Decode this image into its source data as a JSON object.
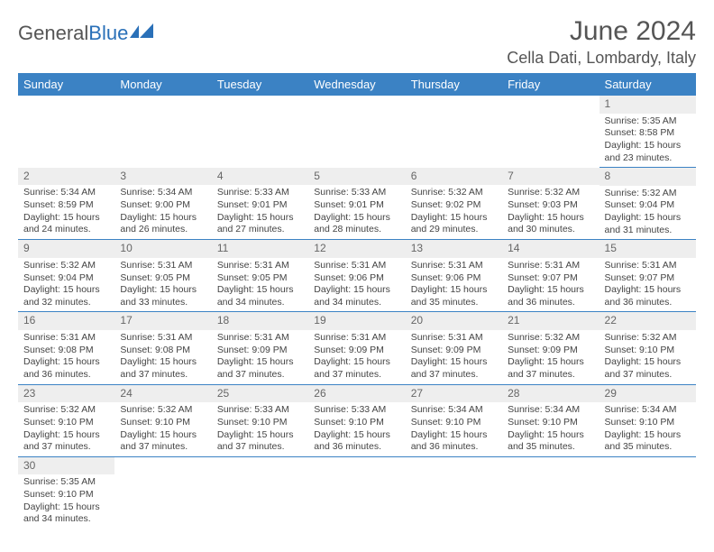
{
  "logo": {
    "text1": "General",
    "text2": "Blue"
  },
  "title": "June 2024",
  "location": "Cella Dati, Lombardy, Italy",
  "colors": {
    "header_bg": "#3b82c4",
    "header_text": "#ffffff",
    "daynum_bg": "#eeeeee",
    "border": "#3b82c4",
    "logo_gray": "#555555",
    "logo_blue": "#2a70b8"
  },
  "day_headers": [
    "Sunday",
    "Monday",
    "Tuesday",
    "Wednesday",
    "Thursday",
    "Friday",
    "Saturday"
  ],
  "weeks": [
    [
      null,
      null,
      null,
      null,
      null,
      null,
      {
        "n": "1",
        "sr": "Sunrise: 5:35 AM",
        "ss": "Sunset: 8:58 PM",
        "dl": "Daylight: 15 hours and 23 minutes."
      }
    ],
    [
      {
        "n": "2",
        "sr": "Sunrise: 5:34 AM",
        "ss": "Sunset: 8:59 PM",
        "dl": "Daylight: 15 hours and 24 minutes."
      },
      {
        "n": "3",
        "sr": "Sunrise: 5:34 AM",
        "ss": "Sunset: 9:00 PM",
        "dl": "Daylight: 15 hours and 26 minutes."
      },
      {
        "n": "4",
        "sr": "Sunrise: 5:33 AM",
        "ss": "Sunset: 9:01 PM",
        "dl": "Daylight: 15 hours and 27 minutes."
      },
      {
        "n": "5",
        "sr": "Sunrise: 5:33 AM",
        "ss": "Sunset: 9:01 PM",
        "dl": "Daylight: 15 hours and 28 minutes."
      },
      {
        "n": "6",
        "sr": "Sunrise: 5:32 AM",
        "ss": "Sunset: 9:02 PM",
        "dl": "Daylight: 15 hours and 29 minutes."
      },
      {
        "n": "7",
        "sr": "Sunrise: 5:32 AM",
        "ss": "Sunset: 9:03 PM",
        "dl": "Daylight: 15 hours and 30 minutes."
      },
      {
        "n": "8",
        "sr": "Sunrise: 5:32 AM",
        "ss": "Sunset: 9:04 PM",
        "dl": "Daylight: 15 hours and 31 minutes."
      }
    ],
    [
      {
        "n": "9",
        "sr": "Sunrise: 5:32 AM",
        "ss": "Sunset: 9:04 PM",
        "dl": "Daylight: 15 hours and 32 minutes."
      },
      {
        "n": "10",
        "sr": "Sunrise: 5:31 AM",
        "ss": "Sunset: 9:05 PM",
        "dl": "Daylight: 15 hours and 33 minutes."
      },
      {
        "n": "11",
        "sr": "Sunrise: 5:31 AM",
        "ss": "Sunset: 9:05 PM",
        "dl": "Daylight: 15 hours and 34 minutes."
      },
      {
        "n": "12",
        "sr": "Sunrise: 5:31 AM",
        "ss": "Sunset: 9:06 PM",
        "dl": "Daylight: 15 hours and 34 minutes."
      },
      {
        "n": "13",
        "sr": "Sunrise: 5:31 AM",
        "ss": "Sunset: 9:06 PM",
        "dl": "Daylight: 15 hours and 35 minutes."
      },
      {
        "n": "14",
        "sr": "Sunrise: 5:31 AM",
        "ss": "Sunset: 9:07 PM",
        "dl": "Daylight: 15 hours and 36 minutes."
      },
      {
        "n": "15",
        "sr": "Sunrise: 5:31 AM",
        "ss": "Sunset: 9:07 PM",
        "dl": "Daylight: 15 hours and 36 minutes."
      }
    ],
    [
      {
        "n": "16",
        "sr": "Sunrise: 5:31 AM",
        "ss": "Sunset: 9:08 PM",
        "dl": "Daylight: 15 hours and 36 minutes."
      },
      {
        "n": "17",
        "sr": "Sunrise: 5:31 AM",
        "ss": "Sunset: 9:08 PM",
        "dl": "Daylight: 15 hours and 37 minutes."
      },
      {
        "n": "18",
        "sr": "Sunrise: 5:31 AM",
        "ss": "Sunset: 9:09 PM",
        "dl": "Daylight: 15 hours and 37 minutes."
      },
      {
        "n": "19",
        "sr": "Sunrise: 5:31 AM",
        "ss": "Sunset: 9:09 PM",
        "dl": "Daylight: 15 hours and 37 minutes."
      },
      {
        "n": "20",
        "sr": "Sunrise: 5:31 AM",
        "ss": "Sunset: 9:09 PM",
        "dl": "Daylight: 15 hours and 37 minutes."
      },
      {
        "n": "21",
        "sr": "Sunrise: 5:32 AM",
        "ss": "Sunset: 9:09 PM",
        "dl": "Daylight: 15 hours and 37 minutes."
      },
      {
        "n": "22",
        "sr": "Sunrise: 5:32 AM",
        "ss": "Sunset: 9:10 PM",
        "dl": "Daylight: 15 hours and 37 minutes."
      }
    ],
    [
      {
        "n": "23",
        "sr": "Sunrise: 5:32 AM",
        "ss": "Sunset: 9:10 PM",
        "dl": "Daylight: 15 hours and 37 minutes."
      },
      {
        "n": "24",
        "sr": "Sunrise: 5:32 AM",
        "ss": "Sunset: 9:10 PM",
        "dl": "Daylight: 15 hours and 37 minutes."
      },
      {
        "n": "25",
        "sr": "Sunrise: 5:33 AM",
        "ss": "Sunset: 9:10 PM",
        "dl": "Daylight: 15 hours and 37 minutes."
      },
      {
        "n": "26",
        "sr": "Sunrise: 5:33 AM",
        "ss": "Sunset: 9:10 PM",
        "dl": "Daylight: 15 hours and 36 minutes."
      },
      {
        "n": "27",
        "sr": "Sunrise: 5:34 AM",
        "ss": "Sunset: 9:10 PM",
        "dl": "Daylight: 15 hours and 36 minutes."
      },
      {
        "n": "28",
        "sr": "Sunrise: 5:34 AM",
        "ss": "Sunset: 9:10 PM",
        "dl": "Daylight: 15 hours and 35 minutes."
      },
      {
        "n": "29",
        "sr": "Sunrise: 5:34 AM",
        "ss": "Sunset: 9:10 PM",
        "dl": "Daylight: 15 hours and 35 minutes."
      }
    ],
    [
      {
        "n": "30",
        "sr": "Sunrise: 5:35 AM",
        "ss": "Sunset: 9:10 PM",
        "dl": "Daylight: 15 hours and 34 minutes."
      },
      null,
      null,
      null,
      null,
      null,
      null
    ]
  ]
}
